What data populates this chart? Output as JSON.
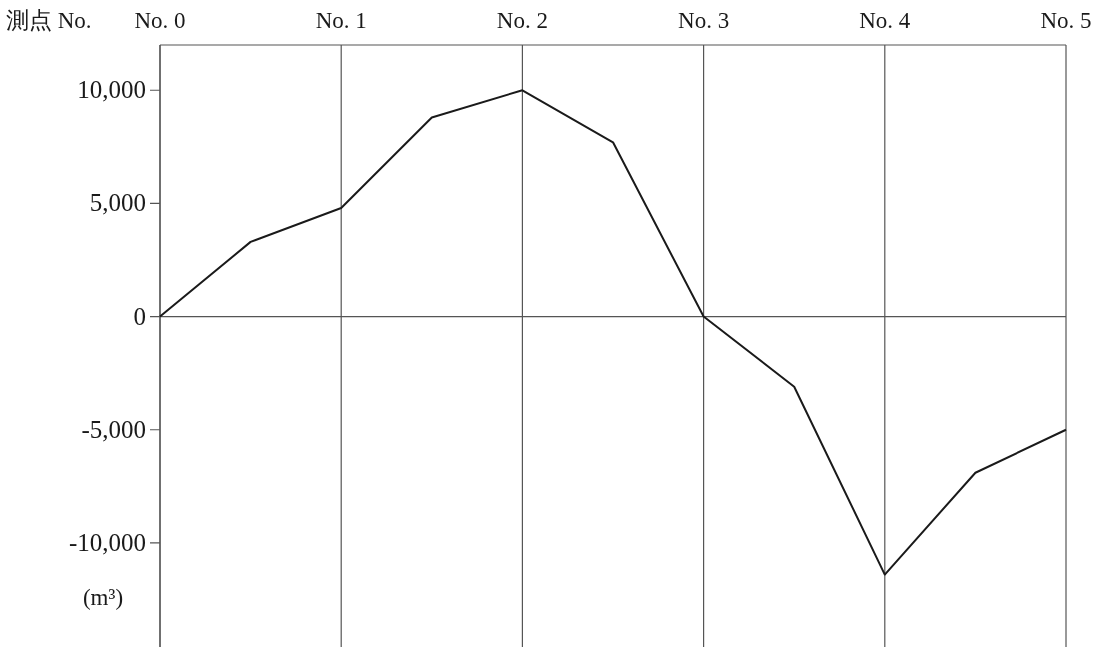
{
  "chart_data": {
    "type": "line",
    "xlabel": "測点 No.",
    "ylabel": "(m³)",
    "x": [
      0,
      0.5,
      1,
      1.5,
      2,
      2.5,
      3,
      3.5,
      4,
      4.5,
      5
    ],
    "series": [
      {
        "color": "#1a1a1a",
        "values": [
          0,
          3300,
          4800,
          8800,
          10000,
          7700,
          0,
          -3100,
          -11400,
          -6900,
          -5000
        ]
      }
    ],
    "xlim": [
      0,
      5
    ],
    "xticks": [
      {
        "value": 0,
        "label": "No. 0"
      },
      {
        "value": 1,
        "label": "No. 1"
      },
      {
        "value": 2,
        "label": "No. 2"
      },
      {
        "value": 3,
        "label": "No. 3"
      },
      {
        "value": 4,
        "label": "No. 4"
      },
      {
        "value": 5,
        "label": "No. 5"
      }
    ],
    "ylim": [
      -14600,
      12000
    ],
    "yticks": [
      {
        "value": -10000,
        "label": "-10,000"
      },
      {
        "value": -5000,
        "label": "-5,000"
      },
      {
        "value": 0,
        "label": "0"
      },
      {
        "value": 5000,
        "label": "5,000"
      },
      {
        "value": 10000,
        "label": "10,000"
      }
    ],
    "grid": "x",
    "ref_lines": [
      {
        "axis": "y",
        "value": 0,
        "color": "#555555"
      }
    ]
  }
}
